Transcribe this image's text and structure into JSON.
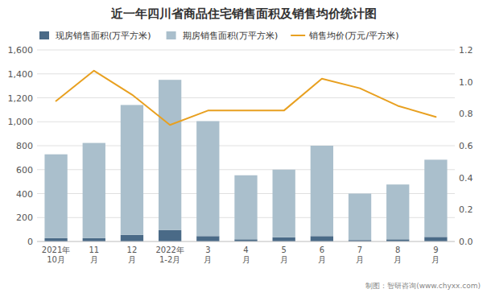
{
  "chart_data": {
    "type": "bar",
    "title": "近一年四川省商品住宅销售面积及销售均价统计图",
    "categories": [
      "2021年\n10月",
      "11\n月",
      "12\n月",
      "2022年\n1-2月",
      "3\n月",
      "4\n月",
      "5\n月",
      "6\n月",
      "7\n月",
      "8\n月",
      "9\n月"
    ],
    "stacked": true,
    "series": [
      {
        "name": "现房销售面积(万平方米)",
        "color": "#4a6a87",
        "values": [
          28,
          28,
          55,
          95,
          45,
          18,
          35,
          45,
          12,
          18,
          38
        ]
      },
      {
        "name": "期房销售面积(万平方米)",
        "color": "#aabfcc",
        "values": [
          700,
          795,
          1085,
          1255,
          960,
          535,
          565,
          755,
          388,
          458,
          645
        ]
      },
      {
        "name": "销售均价(万元/平方米)",
        "type": "line",
        "axis": "y2",
        "color": "#e8a020",
        "values": [
          0.88,
          1.07,
          0.92,
          0.73,
          0.82,
          0.82,
          0.82,
          1.02,
          0.96,
          0.85,
          0.78
        ]
      }
    ],
    "ylim": [
      0,
      1600
    ],
    "yticks": [
      0,
      200,
      400,
      600,
      800,
      {
        "value": 1000,
        "label": "1,000"
      },
      {
        "value": 1200,
        "label": "1,200"
      },
      {
        "value": 1400,
        "label": "1,400"
      },
      {
        "value": 1600,
        "label": "1,600"
      }
    ],
    "y2lim": [
      0.0,
      1.2
    ],
    "y2ticks": [
      {
        "value": 0.0,
        "label": "0.0"
      },
      0.2,
      0.4,
      0.6,
      0.8,
      {
        "value": 1.0,
        "label": "1.0"
      },
      1.2
    ],
    "grid": true,
    "legend": "top",
    "annotations": [
      "制图：智研咨询(www.chyxx.com)"
    ]
  }
}
